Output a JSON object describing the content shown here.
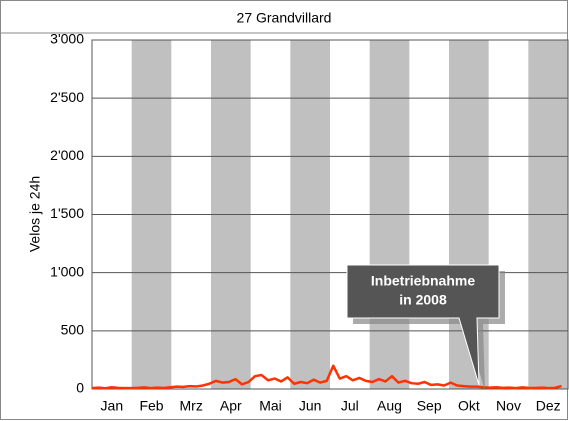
{
  "chart_data": {
    "type": "line",
    "title": "27 Grandvillard",
    "ylabel": "Velos je 24h",
    "categories": [
      "Jan",
      "Feb",
      "Mrz",
      "Apr",
      "Mai",
      "Jun",
      "Jul",
      "Aug",
      "Sep",
      "Okt",
      "Nov",
      "Dez"
    ],
    "band_color": "#c0c0c0",
    "xlim": [
      0,
      365
    ],
    "x": [
      0,
      5,
      10,
      15,
      20,
      25,
      30,
      35,
      40,
      45,
      50,
      55,
      60,
      65,
      70,
      75,
      80,
      85,
      90,
      95,
      100,
      105,
      110,
      115,
      120,
      125,
      130,
      135,
      140,
      145,
      150,
      155,
      160,
      165,
      170,
      175,
      180,
      185,
      190,
      195,
      200,
      205,
      210,
      215,
      220,
      225,
      230,
      235,
      240,
      245,
      250,
      255,
      260,
      265,
      270,
      275,
      280,
      285,
      290,
      295,
      300,
      305,
      310,
      315,
      320,
      325,
      330,
      335,
      340,
      345,
      350,
      355,
      360
    ],
    "series": [
      {
        "color": "#ff3300",
        "values": [
          8,
          12,
          6,
          15,
          10,
          9,
          7,
          10,
          14,
          8,
          12,
          9,
          15,
          20,
          18,
          25,
          22,
          30,
          45,
          70,
          55,
          60,
          85,
          40,
          60,
          110,
          120,
          75,
          90,
          65,
          100,
          45,
          60,
          50,
          80,
          55,
          70,
          200,
          90,
          110,
          75,
          95,
          70,
          60,
          85,
          65,
          110,
          55,
          70,
          50,
          45,
          60,
          35,
          40,
          30,
          55,
          30,
          25,
          20,
          20,
          15,
          12,
          15,
          10,
          12,
          8,
          14,
          10,
          9,
          12,
          8,
          10,
          25
        ]
      }
    ],
    "ylim": [
      0,
      3000
    ],
    "yticks": [
      0,
      500,
      {
        "value": 1000,
        "label": "1'000"
      },
      {
        "value": 1500,
        "label": "1'500"
      },
      {
        "value": 2000,
        "label": "2'000"
      },
      {
        "value": 2500,
        "label": "2'500"
      },
      {
        "value": 3000,
        "label": "3'000"
      }
    ],
    "grid": true,
    "annotation": [
      "Inbetriebnahme",
      "in 2008"
    ]
  }
}
